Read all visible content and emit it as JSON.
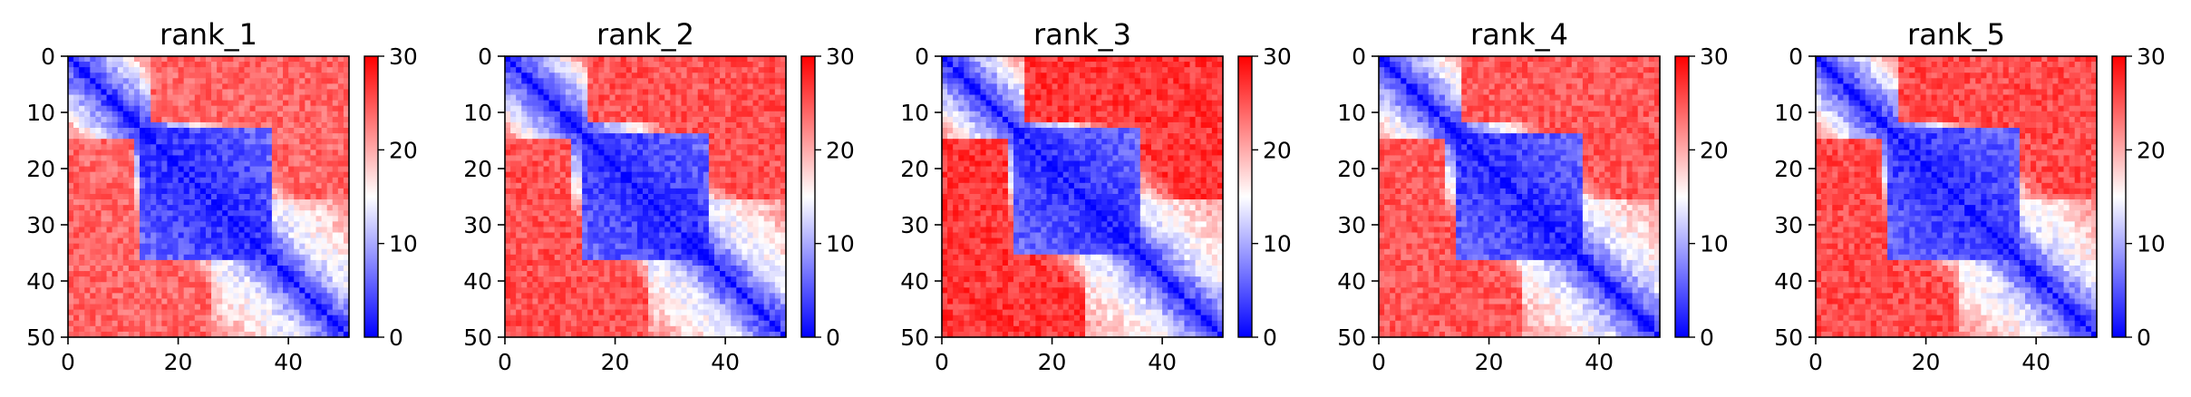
{
  "chart_data": [
    {
      "type": "heatmap",
      "title": "rank_1",
      "variant": 0,
      "x_ticks": [
        0,
        20,
        40
      ],
      "y_ticks": [
        0,
        10,
        20,
        30,
        40,
        50
      ],
      "xlim": [
        0,
        51
      ],
      "ylim": [
        50,
        0
      ],
      "colorbar": {
        "range": [
          0,
          30
        ],
        "ticks": [
          0,
          10,
          20,
          30
        ],
        "colormap": "bwr",
        "low": "#0000ff",
        "mid": "#ffffff",
        "high": "#ff0000"
      },
      "matrix_size": 51
    },
    {
      "type": "heatmap",
      "title": "rank_2",
      "variant": 1,
      "x_ticks": [
        0,
        20,
        40
      ],
      "y_ticks": [
        0,
        10,
        20,
        30,
        40,
        50
      ],
      "xlim": [
        0,
        51
      ],
      "ylim": [
        50,
        0
      ],
      "colorbar": {
        "range": [
          0,
          30
        ],
        "ticks": [
          0,
          10,
          20,
          30
        ],
        "colormap": "bwr",
        "low": "#0000ff",
        "mid": "#ffffff",
        "high": "#ff0000"
      },
      "matrix_size": 51
    },
    {
      "type": "heatmap",
      "title": "rank_3",
      "variant": 2,
      "x_ticks": [
        0,
        20,
        40
      ],
      "y_ticks": [
        0,
        10,
        20,
        30,
        40,
        50
      ],
      "xlim": [
        0,
        51
      ],
      "ylim": [
        50,
        0
      ],
      "colorbar": {
        "range": [
          0,
          30
        ],
        "ticks": [
          0,
          10,
          20,
          30
        ],
        "colormap": "bwr",
        "low": "#0000ff",
        "mid": "#ffffff",
        "high": "#ff0000"
      },
      "matrix_size": 51
    },
    {
      "type": "heatmap",
      "title": "rank_4",
      "variant": 3,
      "x_ticks": [
        0,
        20,
        40
      ],
      "y_ticks": [
        0,
        10,
        20,
        30,
        40,
        50
      ],
      "xlim": [
        0,
        51
      ],
      "ylim": [
        50,
        0
      ],
      "colorbar": {
        "range": [
          0,
          30
        ],
        "ticks": [
          0,
          10,
          20,
          30
        ],
        "colormap": "bwr",
        "low": "#0000ff",
        "mid": "#ffffff",
        "high": "#ff0000"
      },
      "matrix_size": 51
    },
    {
      "type": "heatmap",
      "title": "rank_5",
      "variant": 4,
      "x_ticks": [
        0,
        20,
        40
      ],
      "y_ticks": [
        0,
        10,
        20,
        30,
        40,
        50
      ],
      "xlim": [
        0,
        51
      ],
      "ylim": [
        50,
        0
      ],
      "colorbar": {
        "range": [
          0,
          30
        ],
        "ticks": [
          0,
          10,
          20,
          30
        ],
        "colormap": "bwr",
        "low": "#0000ff",
        "mid": "#ffffff",
        "high": "#ff0000"
      },
      "matrix_size": 51
    }
  ]
}
